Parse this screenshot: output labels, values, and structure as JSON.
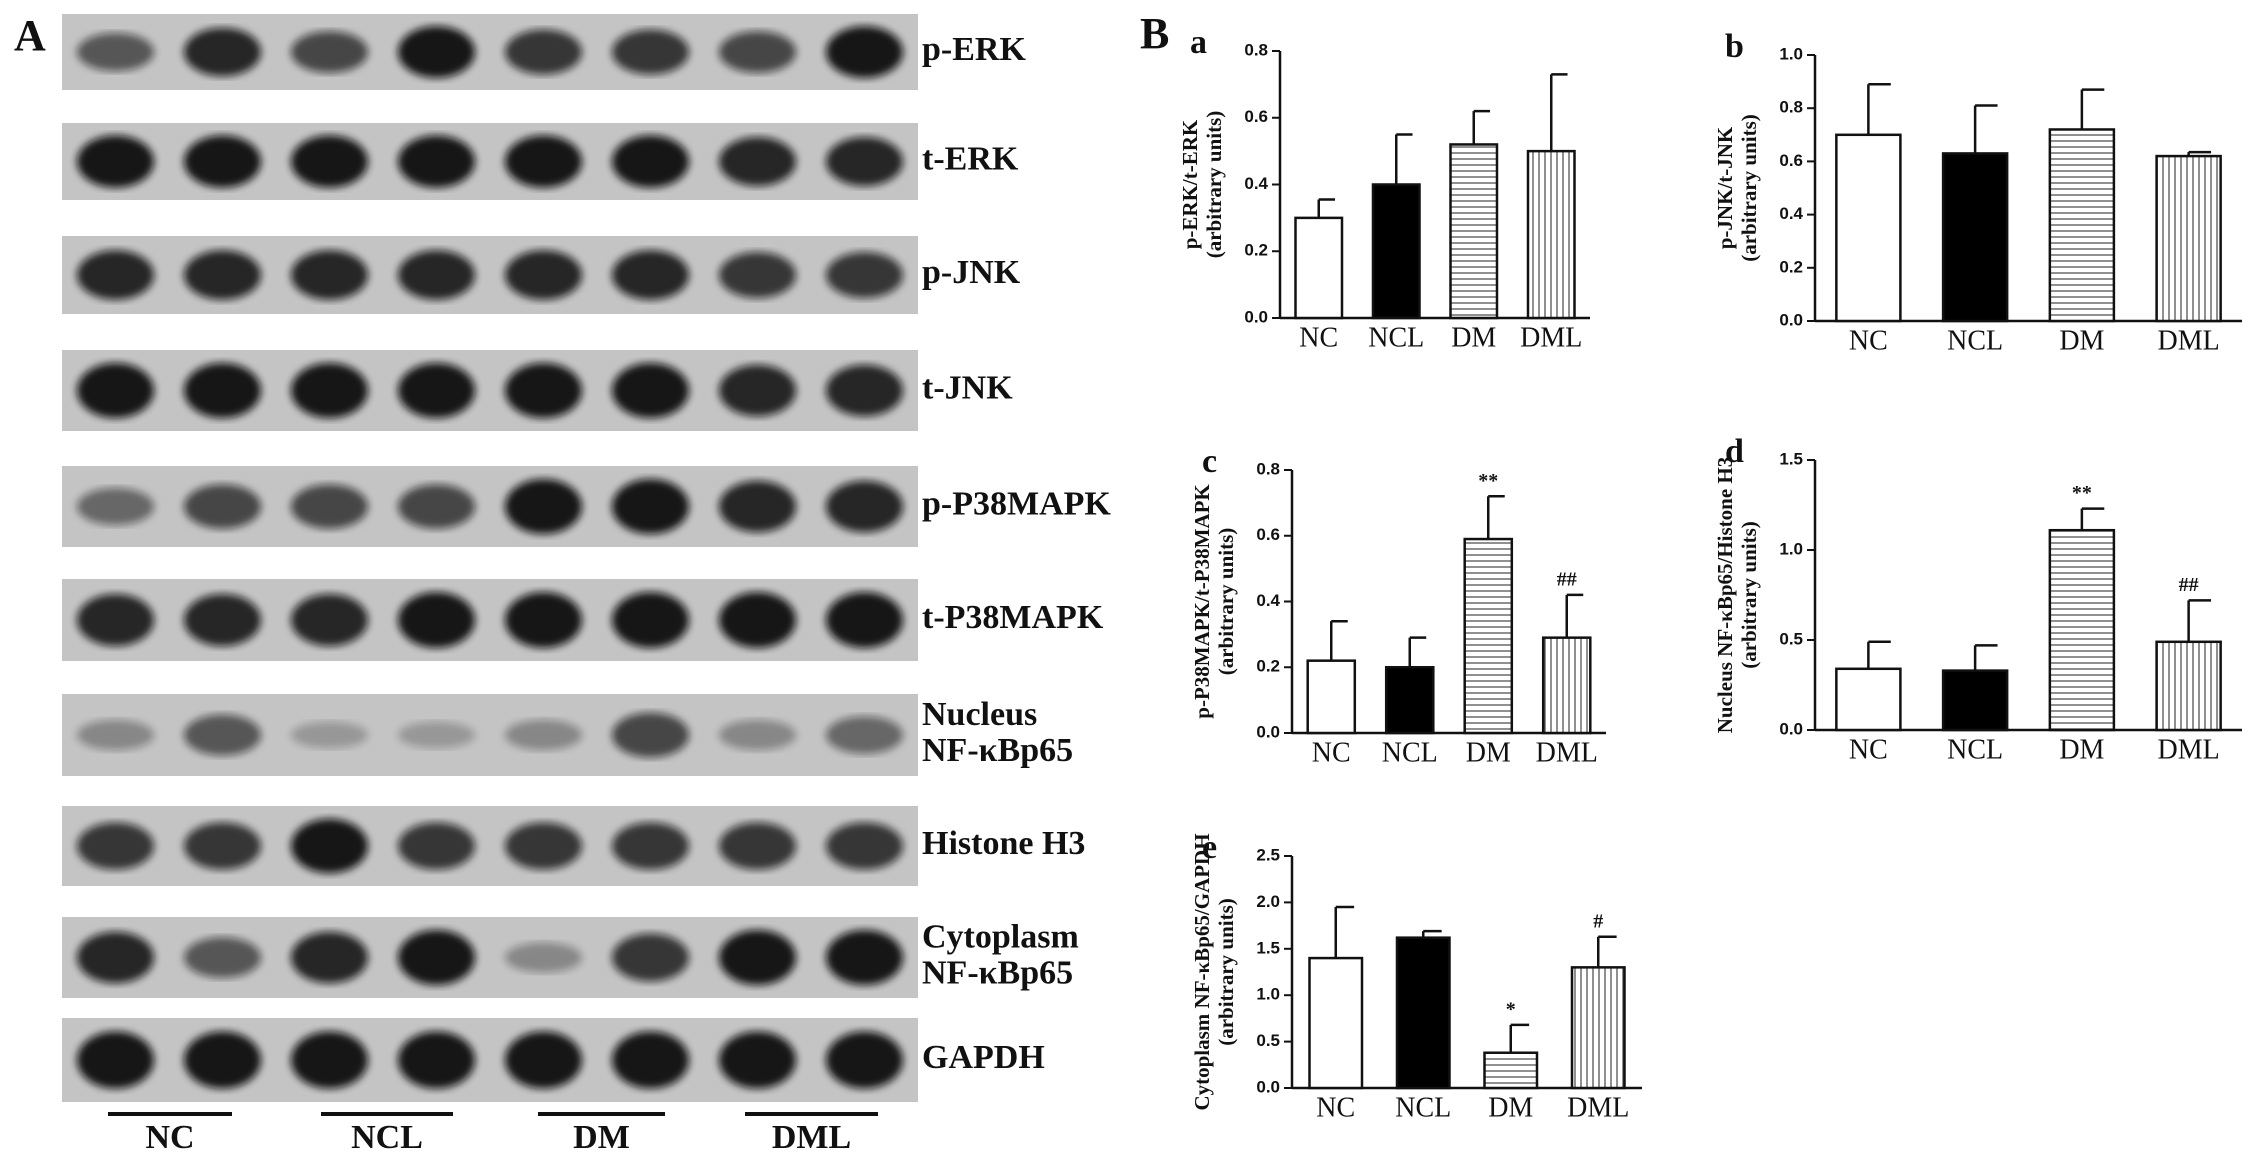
{
  "figure": {
    "panel_a": "A",
    "panel_b": "B"
  },
  "blots": {
    "rows": [
      [
        "p-ERK"
      ],
      [
        "t-ERK"
      ],
      [
        "p-JNK"
      ],
      [
        "t-JNK"
      ],
      [
        "p-P38MAPK"
      ],
      [
        "t-P38MAPK"
      ],
      [
        "Nucleus",
        "NF-κBp65"
      ],
      [
        "Histone H3"
      ],
      [
        "Cytoplasm",
        "NF-κBp65"
      ],
      [
        "GAPDH"
      ]
    ],
    "groups": [
      "NC",
      "NCL",
      "DM",
      "DML"
    ]
  },
  "chart_data": [
    {
      "type": "bar",
      "label": "a",
      "ylabel": [
        "p-ERK/t-ERK",
        "(arbitrary units)"
      ],
      "categories": [
        "NC",
        "NCL",
        "DM",
        "DML"
      ],
      "values": [
        0.3,
        0.4,
        0.52,
        0.5
      ],
      "errors": [
        0.055,
        0.15,
        0.1,
        0.23
      ],
      "annotations": [
        null,
        null,
        null,
        null
      ],
      "fills": [
        "white",
        "black",
        "hlines",
        "vlines"
      ],
      "ylim": [
        0,
        0.8
      ],
      "yticks": [
        {
          "value": 0,
          "label": "0.0"
        },
        {
          "value": 0.2,
          "label": "0.2"
        },
        {
          "value": 0.4,
          "label": "0.4"
        },
        {
          "value": 0.6,
          "label": "0.6"
        },
        {
          "value": 0.8,
          "label": "0.8"
        }
      ]
    },
    {
      "type": "bar",
      "label": "b",
      "ylabel": [
        "p-JNK/t-JNK",
        "(arbitrary units)"
      ],
      "categories": [
        "NC",
        "NCL",
        "DM",
        "DML"
      ],
      "values": [
        0.7,
        0.63,
        0.72,
        0.62
      ],
      "errors": [
        0.19,
        0.18,
        0.15,
        0.015
      ],
      "annotations": [
        null,
        null,
        null,
        null
      ],
      "fills": [
        "white",
        "black",
        "hlines",
        "vlines"
      ],
      "ylim": [
        0,
        1.0
      ],
      "yticks": [
        {
          "value": 0,
          "label": "0.0"
        },
        {
          "value": 0.2,
          "label": "0.2"
        },
        {
          "value": 0.4,
          "label": "0.4"
        },
        {
          "value": 0.6,
          "label": "0.6"
        },
        {
          "value": 0.8,
          "label": "0.8"
        },
        {
          "value": 1.0,
          "label": "1.0"
        }
      ]
    },
    {
      "type": "bar",
      "label": "c",
      "ylabel": [
        "p-P38MAPK/t-P38MAPK",
        "(arbitrary units)"
      ],
      "categories": [
        "NC",
        "NCL",
        "DM",
        "DML"
      ],
      "values": [
        0.22,
        0.2,
        0.59,
        0.29
      ],
      "errors": [
        0.12,
        0.09,
        0.13,
        0.13
      ],
      "annotations": [
        null,
        null,
        "**",
        "##"
      ],
      "fills": [
        "white",
        "black",
        "hlines",
        "vlines"
      ],
      "ylim": [
        0,
        0.8
      ],
      "yticks": [
        {
          "value": 0,
          "label": "0.0"
        },
        {
          "value": 0.2,
          "label": "0.2"
        },
        {
          "value": 0.4,
          "label": "0.4"
        },
        {
          "value": 0.6,
          "label": "0.6"
        },
        {
          "value": 0.8,
          "label": "0.8"
        }
      ]
    },
    {
      "type": "bar",
      "label": "d",
      "ylabel": [
        "Nucleus NF-κBp65/Histone H3",
        "(arbitrary units)"
      ],
      "categories": [
        "NC",
        "NCL",
        "DM",
        "DML"
      ],
      "values": [
        0.34,
        0.33,
        1.11,
        0.49
      ],
      "errors": [
        0.15,
        0.14,
        0.12,
        0.23
      ],
      "annotations": [
        null,
        null,
        "**",
        "##"
      ],
      "fills": [
        "white",
        "black",
        "hlines",
        "vlines"
      ],
      "ylim": [
        0,
        1.5
      ],
      "yticks": [
        {
          "value": 0,
          "label": "0.0"
        },
        {
          "value": 0.5,
          "label": "0.5"
        },
        {
          "value": 1.0,
          "label": "1.0"
        },
        {
          "value": 1.5,
          "label": "1.5"
        }
      ]
    },
    {
      "type": "bar",
      "label": "e",
      "ylabel": [
        "Cytoplasm NF-κBp65/GAPDH",
        "(arbitrary units)"
      ],
      "categories": [
        "NC",
        "NCL",
        "DM",
        "DML"
      ],
      "values": [
        1.4,
        1.62,
        0.38,
        1.3
      ],
      "errors": [
        0.55,
        0.07,
        0.3,
        0.33
      ],
      "annotations": [
        null,
        null,
        "*",
        "#"
      ],
      "fills": [
        "white",
        "black",
        "hlines",
        "vlines"
      ],
      "ylim": [
        0,
        2.5
      ],
      "yticks": [
        {
          "value": 0,
          "label": "0.0"
        },
        {
          "value": 0.5,
          "label": "0.5"
        },
        {
          "value": 1.0,
          "label": "1.0"
        },
        {
          "value": 1.5,
          "label": "1.5"
        },
        {
          "value": 2.0,
          "label": "2.0"
        },
        {
          "value": 2.5,
          "label": "2.5"
        }
      ]
    }
  ]
}
